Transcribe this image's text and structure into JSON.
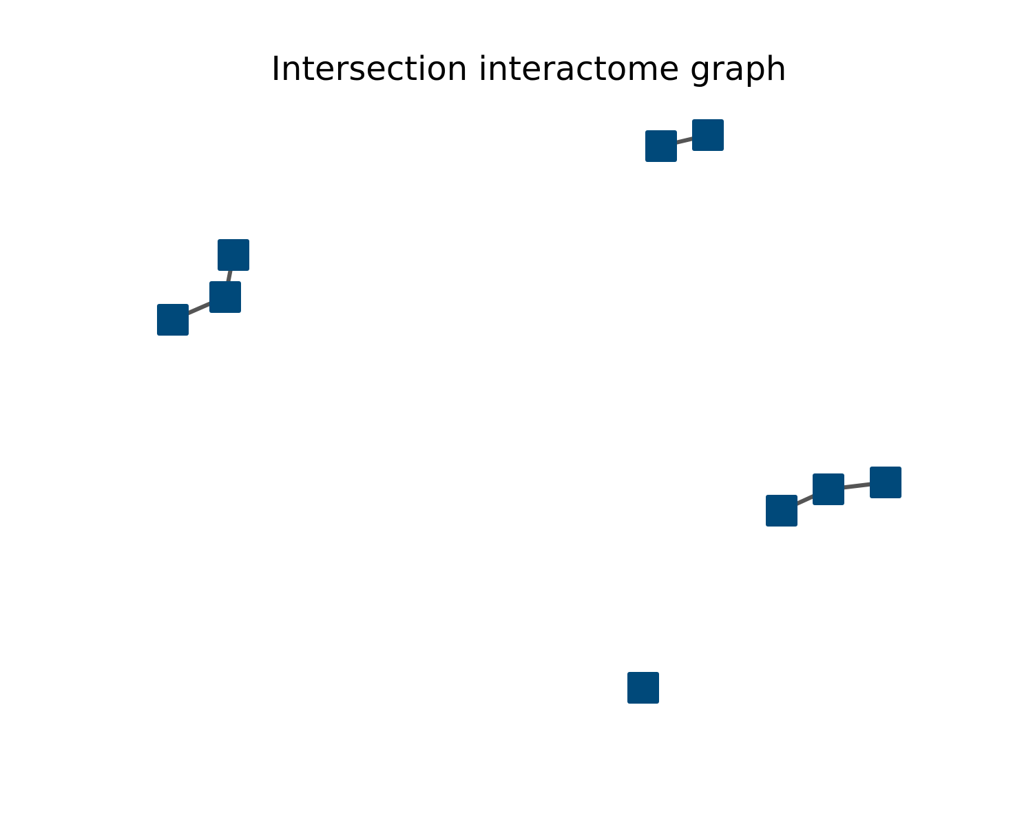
{
  "title": "Intersection interactome graph",
  "colors": {
    "node_fill": "#00497a",
    "edge_stroke": "#555555",
    "background": "#ffffff"
  },
  "graph": {
    "nodes": [
      {
        "id": "n1"
      },
      {
        "id": "n2"
      },
      {
        "id": "n3"
      },
      {
        "id": "n4"
      },
      {
        "id": "n5"
      },
      {
        "id": "n6"
      },
      {
        "id": "n7"
      },
      {
        "id": "n8"
      },
      {
        "id": "n9"
      }
    ],
    "edges": [
      {
        "source": "n3",
        "target": "n4"
      },
      {
        "source": "n4",
        "target": "n5"
      },
      {
        "source": "n1",
        "target": "n2"
      },
      {
        "source": "n6",
        "target": "n7"
      },
      {
        "source": "n7",
        "target": "n8"
      }
    ]
  }
}
